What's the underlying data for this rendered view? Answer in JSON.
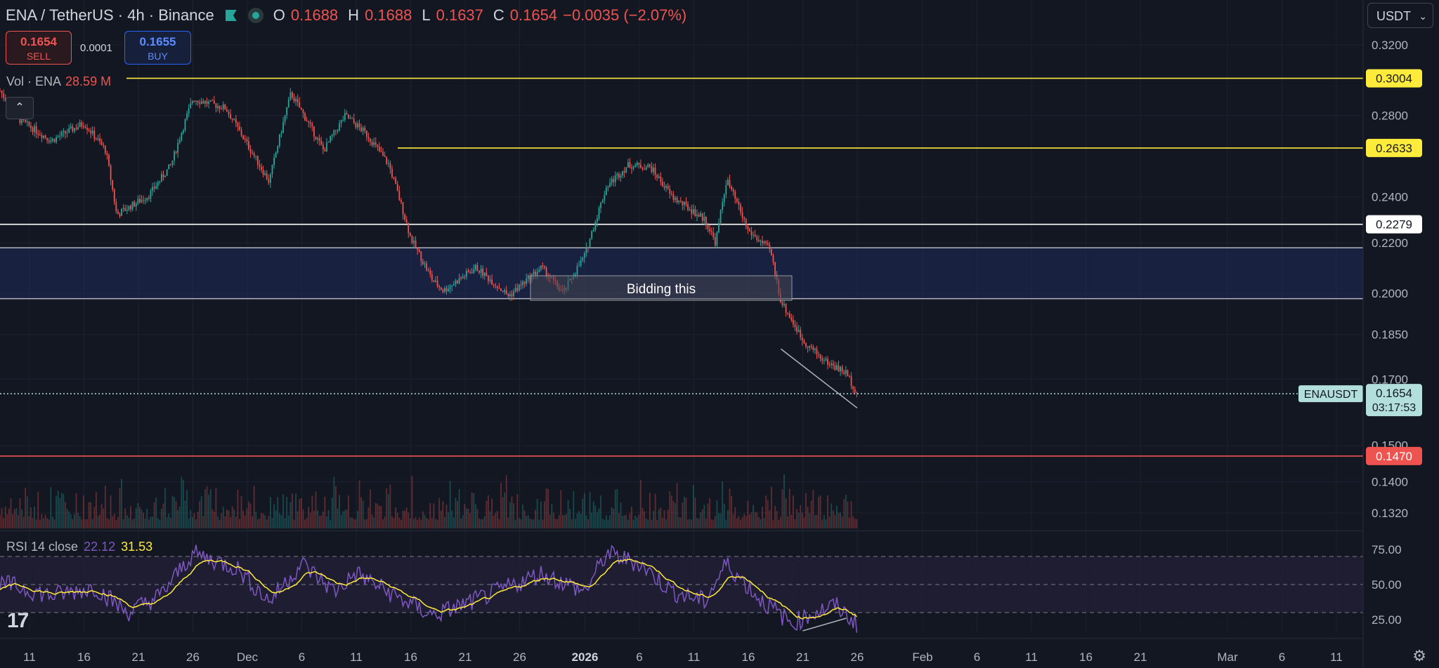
{
  "header": {
    "symbol": "ENA / TetherUS · 4h · Binance",
    "open_key": "O",
    "open": "0.1688",
    "high_key": "H",
    "high": "0.1688",
    "low_key": "L",
    "low": "0.1637",
    "close_key": "C",
    "close": "0.1654",
    "change": "−0.0035 (−2.07%)"
  },
  "trade": {
    "sell_price": "0.1654",
    "sell_label": "SELL",
    "spread": "0.0001",
    "buy_price": "0.1655",
    "buy_label": "BUY"
  },
  "volume_indicator": {
    "label": "Vol · ENA",
    "value": "28.59 M"
  },
  "rsi_indicator": {
    "label": "RSI 14 close",
    "rsi": "22.12",
    "ma": "31.53"
  },
  "currency_selector": "USDT",
  "annotation": "Bidding this",
  "symbol_tag": "ENAUSDT",
  "countdown": "03:17:53",
  "colors": {
    "background": "#131722",
    "up": "#26a69a",
    "down": "#ef5350",
    "yellow_line": "#ffeb3b",
    "white_line": "#ffffff",
    "red_line": "#ef5350",
    "zone": "#1f2a5a",
    "rsi_line": "#7e57c2",
    "rsi_ma": "#ffeb3b",
    "price_tag": "#b2dfdb"
  },
  "chart_data": {
    "type": "candlestick",
    "x_axis": [
      "11",
      "16",
      "21",
      "26",
      "Dec",
      "6",
      "11",
      "16",
      "21",
      "26",
      "2026",
      "6",
      "11",
      "16",
      "21",
      "26",
      "Feb",
      "6",
      "11",
      "16",
      "21",
      "Mar",
      "6",
      "11"
    ],
    "y_axis": {
      "ticks": [
        0.32,
        0.3,
        0.28,
        0.26,
        0.24,
        0.22,
        0.2,
        0.185,
        0.17,
        0.15,
        0.14,
        0.132
      ],
      "labels": [
        "0.3200",
        "0.2800",
        "0.2400",
        "0.2200",
        "0.2000",
        "0.1850",
        "0.1700",
        "0.1500",
        "0.1400",
        "0.1320"
      ],
      "scale": "log"
    },
    "price_path": [
      {
        "date": "2025-11-07",
        "price": 0.305
      },
      {
        "date": "2025-11-10",
        "price": 0.278
      },
      {
        "date": "2025-11-13",
        "price": 0.267
      },
      {
        "date": "2025-11-16",
        "price": 0.276
      },
      {
        "date": "2025-11-18",
        "price": 0.262
      },
      {
        "date": "2025-11-19",
        "price": 0.232
      },
      {
        "date": "2025-11-22",
        "price": 0.241
      },
      {
        "date": "2025-11-24",
        "price": 0.255
      },
      {
        "date": "2025-11-26",
        "price": 0.289
      },
      {
        "date": "2025-11-29",
        "price": 0.284
      },
      {
        "date": "2025-12-01",
        "price": 0.265
      },
      {
        "date": "2025-12-03",
        "price": 0.247
      },
      {
        "date": "2025-12-05",
        "price": 0.292
      },
      {
        "date": "2025-12-08",
        "price": 0.262
      },
      {
        "date": "2025-12-10",
        "price": 0.28
      },
      {
        "date": "2025-12-12",
        "price": 0.27
      },
      {
        "date": "2025-12-14",
        "price": 0.255
      },
      {
        "date": "2025-12-16",
        "price": 0.222
      },
      {
        "date": "2025-12-18",
        "price": 0.205
      },
      {
        "date": "2025-12-19",
        "price": 0.201
      },
      {
        "date": "2025-12-22",
        "price": 0.21
      },
      {
        "date": "2025-12-25",
        "price": 0.199
      },
      {
        "date": "2025-12-28",
        "price": 0.21
      },
      {
        "date": "2025-12-30",
        "price": 0.2
      },
      {
        "date": "2026-01-01",
        "price": 0.215
      },
      {
        "date": "2026-01-03",
        "price": 0.245
      },
      {
        "date": "2026-01-05",
        "price": 0.255
      },
      {
        "date": "2026-01-07",
        "price": 0.254
      },
      {
        "date": "2026-01-09",
        "price": 0.24
      },
      {
        "date": "2026-01-12",
        "price": 0.23
      },
      {
        "date": "2026-01-13",
        "price": 0.22
      },
      {
        "date": "2026-01-14",
        "price": 0.248
      },
      {
        "date": "2026-01-16",
        "price": 0.225
      },
      {
        "date": "2026-01-18",
        "price": 0.217
      },
      {
        "date": "2026-01-19",
        "price": 0.197
      },
      {
        "date": "2026-01-21",
        "price": 0.183
      },
      {
        "date": "2026-01-23",
        "price": 0.176
      },
      {
        "date": "2026-01-25",
        "price": 0.172
      },
      {
        "date": "2026-01-26",
        "price": 0.1654
      }
    ],
    "horizontal_lines": [
      {
        "price": 0.3004,
        "label": "0.3004",
        "color": "#ffeb3b"
      },
      {
        "price": 0.2633,
        "label": "0.2633",
        "color": "#ffeb3b"
      },
      {
        "price": 0.2279,
        "label": "0.2279",
        "color": "#ffffff"
      },
      {
        "price": 0.147,
        "label": "0.1470",
        "color": "#ef5350"
      }
    ],
    "zone": {
      "top": 0.218,
      "bottom": 0.198
    },
    "last_price": {
      "price": 0.1654,
      "label": "0.1654"
    },
    "volume": {
      "label": "Vol · ENA",
      "last": "28.59M"
    },
    "rsi": {
      "length": 14,
      "source": "close",
      "last": 22.12,
      "ma_last": 31.53,
      "levels": [
        70,
        50,
        30
      ],
      "tick_labels": [
        "75.00",
        "50.00",
        "25.00"
      ],
      "path": [
        {
          "date": "2025-11-07",
          "value": 45
        },
        {
          "date": "2025-11-09",
          "value": 50
        },
        {
          "date": "2025-11-13",
          "value": 42
        },
        {
          "date": "2025-11-17",
          "value": 48
        },
        {
          "date": "2025-11-20",
          "value": 30
        },
        {
          "date": "2025-11-23",
          "value": 42
        },
        {
          "date": "2025-11-26",
          "value": 72
        },
        {
          "date": "2025-11-30",
          "value": 62
        },
        {
          "date": "2025-12-03",
          "value": 38
        },
        {
          "date": "2025-12-06",
          "value": 65
        },
        {
          "date": "2025-12-09",
          "value": 45
        },
        {
          "date": "2025-12-11",
          "value": 58
        },
        {
          "date": "2025-12-15",
          "value": 40
        },
        {
          "date": "2025-12-18",
          "value": 28
        },
        {
          "date": "2025-12-21",
          "value": 36
        },
        {
          "date": "2025-12-24",
          "value": 45
        },
        {
          "date": "2025-12-28",
          "value": 58
        },
        {
          "date": "2026-01-01",
          "value": 45
        },
        {
          "date": "2026-01-03",
          "value": 72
        },
        {
          "date": "2026-01-06",
          "value": 65
        },
        {
          "date": "2026-01-09",
          "value": 45
        },
        {
          "date": "2026-01-12",
          "value": 38
        },
        {
          "date": "2026-01-14",
          "value": 65
        },
        {
          "date": "2026-01-17",
          "value": 40
        },
        {
          "date": "2026-01-20",
          "value": 22
        },
        {
          "date": "2026-01-22",
          "value": 30
        },
        {
          "date": "2026-01-24",
          "value": 35
        },
        {
          "date": "2026-01-26",
          "value": 22
        }
      ]
    }
  }
}
